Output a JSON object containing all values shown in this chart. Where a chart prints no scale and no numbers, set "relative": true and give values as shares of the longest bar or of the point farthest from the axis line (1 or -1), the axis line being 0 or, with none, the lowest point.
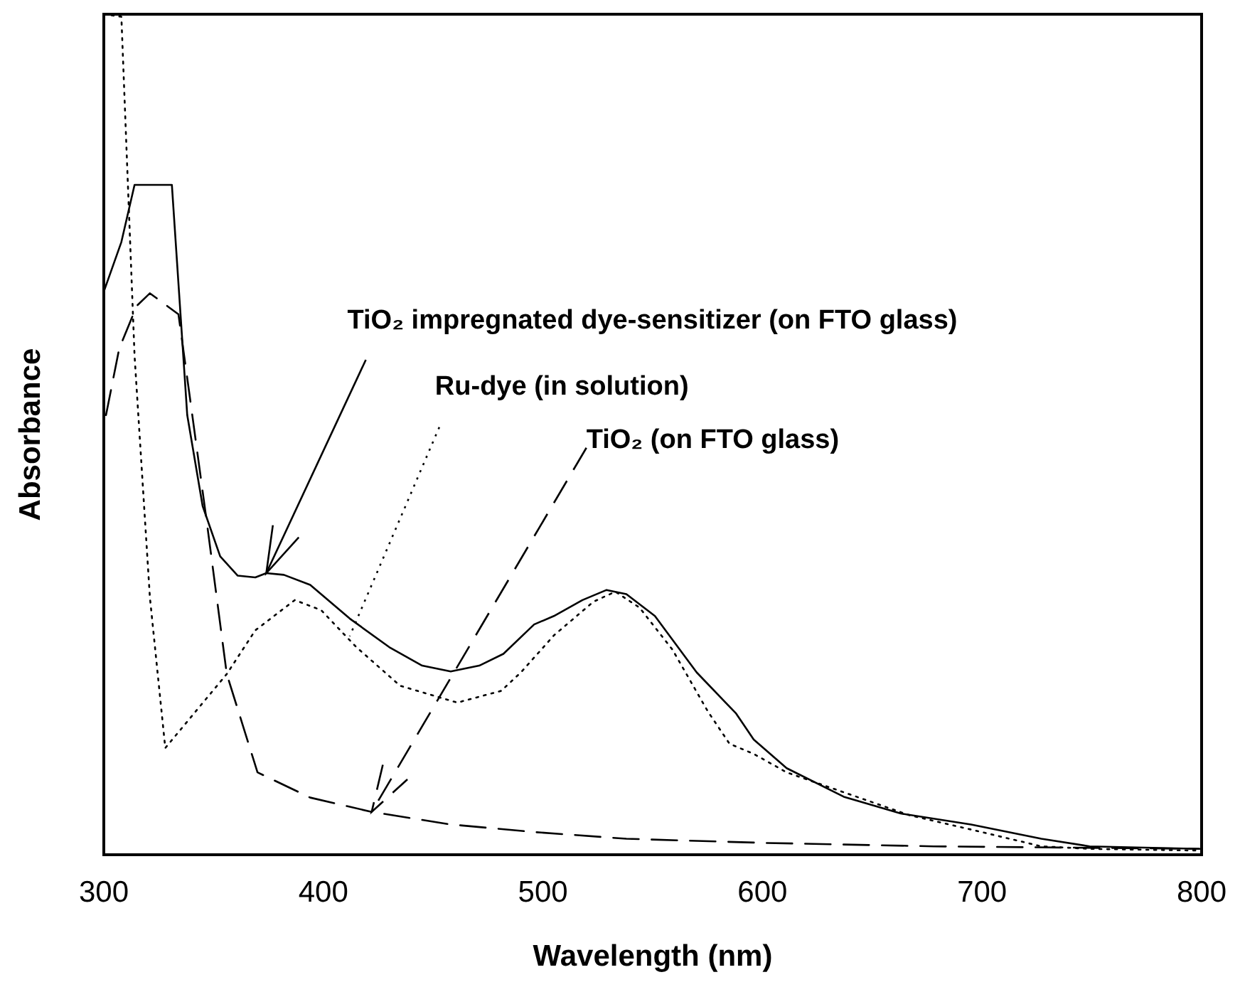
{
  "chart_data": {
    "type": "line",
    "relative": true,
    "xlabel": "Wavelength (nm)",
    "ylabel": "Absorbance",
    "xlim": [
      300,
      800
    ],
    "xticks": [
      300,
      400,
      500,
      600,
      700,
      800
    ],
    "tick_labels": "x",
    "grid": false,
    "series": [
      {
        "color": "#000000",
        "line_style": "solid",
        "x": [
          300,
          308,
          314,
          331,
          338,
          345,
          353,
          361,
          369,
          374,
          382,
          394,
          412,
          430,
          445,
          458,
          471,
          482,
          496,
          505,
          518,
          529,
          538,
          551,
          570,
          588,
          596,
          611,
          637,
          663,
          695,
          727,
          749,
          799
        ],
        "values": [
          0.67,
          0.729,
          0.797,
          0.797,
          0.523,
          0.415,
          0.355,
          0.332,
          0.33,
          0.335,
          0.333,
          0.321,
          0.281,
          0.247,
          0.225,
          0.218,
          0.225,
          0.239,
          0.274,
          0.284,
          0.303,
          0.315,
          0.31,
          0.284,
          0.217,
          0.168,
          0.137,
          0.103,
          0.069,
          0.049,
          0.036,
          0.019,
          0.01,
          0.007
        ]
      },
      {
        "color": "#000000",
        "line_style": "dotted",
        "x": [
          300,
          308,
          314,
          321,
          328,
          356,
          369,
          387,
          399,
          415,
          435,
          461,
          481,
          490,
          505,
          523,
          533,
          544,
          559,
          575,
          585,
          596,
          611,
          667,
          695,
          727,
          749,
          799
        ],
        "values": [
          1.0,
          0.997,
          0.594,
          0.306,
          0.127,
          0.215,
          0.267,
          0.303,
          0.291,
          0.247,
          0.201,
          0.181,
          0.195,
          0.217,
          0.261,
          0.301,
          0.313,
          0.294,
          0.244,
          0.171,
          0.132,
          0.12,
          0.098,
          0.047,
          0.03,
          0.01,
          0.007,
          0.005
        ]
      },
      {
        "color": "#000000",
        "line_style": "dashed",
        "x": [
          301,
          307,
          315,
          321,
          334,
          339,
          347,
          356,
          370,
          394,
          422,
          458,
          496,
          538,
          602,
          678,
          799
        ],
        "values": [
          0.523,
          0.602,
          0.653,
          0.668,
          0.643,
          0.548,
          0.394,
          0.215,
          0.098,
          0.068,
          0.051,
          0.036,
          0.027,
          0.019,
          0.014,
          0.01,
          0.007
        ]
      }
    ],
    "annotations": [
      {
        "text": "TiO₂ impregnated dye-sensitizer (on FTO glass)",
        "x": 374,
        "y": 0.335
      },
      {
        "text": "Ru-dye (in solution)",
        "x": 412,
        "y": 0.26
      },
      {
        "text": "TiO₂ (on FTO glass)",
        "x": 422,
        "y": 0.051
      }
    ]
  }
}
